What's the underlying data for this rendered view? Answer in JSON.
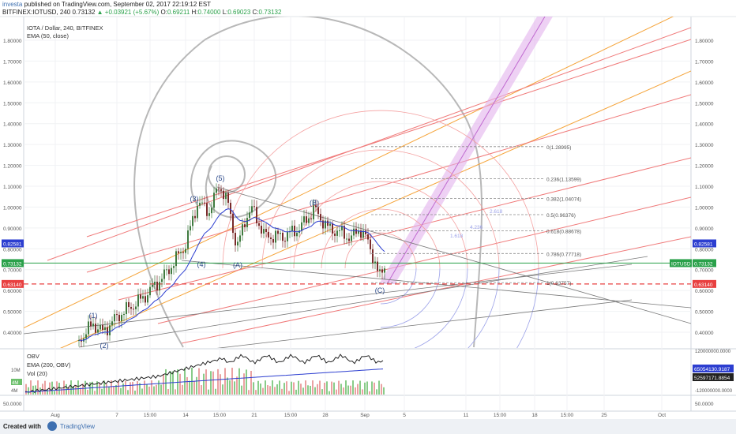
{
  "header": {
    "brand": "investa",
    "published": "published on TradingView.com, September 02, 2017 22:19:12 EST",
    "symbol": "BITFINEX:IOTUSD, 240",
    "close": "0.73132",
    "change": "▲ +0.03921 (+5.67%)",
    "o_label": "O:",
    "o_value": "0.69211",
    "h_label": "H:",
    "h_value": "0.74000",
    "l_label": "L:",
    "l_value": "0.69023",
    "c_label": "C:",
    "c_value": "0.73132"
  },
  "legend": {
    "title": "IOTA / Dollar, 240, BITFINEX",
    "ema": "EMA (50, close)",
    "obv": "OBV",
    "ema_obv": "EMA (200, OBV)",
    "vol": "Vol (20)"
  },
  "axis": {
    "price_labels": [
      "1.80000",
      "1.70000",
      "1.60000",
      "1.50000",
      "1.40000",
      "1.30000",
      "1.20000",
      "1.10000",
      "1.00000",
      "0.90000",
      "0.80000",
      "0.70000",
      "0.60000",
      "0.50000",
      "0.40000"
    ],
    "price_values": [
      1.8,
      1.7,
      1.6,
      1.5,
      1.4,
      1.3,
      1.2,
      1.1,
      1.0,
      0.9,
      0.8,
      0.7,
      0.6,
      0.5,
      0.4
    ],
    "x_labels": [
      "Aug",
      "7",
      "15:00",
      "14",
      "15:00",
      "21",
      "15:00",
      "28",
      "Sep",
      "5",
      "11",
      "15:00",
      "18",
      "15:00",
      "25",
      "Oct"
    ],
    "lower_right_labels": [
      "120000000.0000",
      "0.0000",
      "-120000000.0000"
    ],
    "lower_left_labels": [
      "10M",
      "4M",
      "4M"
    ],
    "bottom_labels": [
      "50.0000",
      "50.0000"
    ]
  },
  "badges": {
    "ema_value": "0.82581",
    "close_value": "0.73132",
    "line_value": "0.63140",
    "symbol_tag": "IOTUSD",
    "obv_value": "65054130.9187",
    "obv_ema_value": "52597171.8854"
  },
  "waves": [
    "(1)",
    "(2)",
    "(3)",
    "(4)",
    "(5)",
    "(A)",
    "(B)",
    "(C)"
  ],
  "fib_labels": [
    {
      "text": "0(1.28995)",
      "price": 1.28995
    },
    {
      "text": "0.236(1.13599)",
      "price": 1.13599
    },
    {
      "text": "0.382(1.04074)",
      "price": 1.04074
    },
    {
      "text": "0.5(0.96376)",
      "price": 0.96376
    },
    {
      "text": "0.618(0.88678)",
      "price": 0.88678
    },
    {
      "text": "0.786(0.77718)",
      "price": 0.77718
    },
    {
      "text": "1(0.63757)",
      "price": 0.63757
    }
  ],
  "arc_labels": [
    "1.618",
    "2.618",
    "4.236"
  ],
  "colors": {
    "ema": "#2c3ed0",
    "close_line": "#2aa14a",
    "red_line": "#e84040",
    "fib": "#888888",
    "orange": "#f5a43a",
    "red_channel": "#f07a7a",
    "spiral": "#b8b8b8",
    "volume_up": "#6cbf6c",
    "volume_down": "#e58a8a"
  },
  "footer": {
    "created": "Created with",
    "brand": "TradingView"
  }
}
